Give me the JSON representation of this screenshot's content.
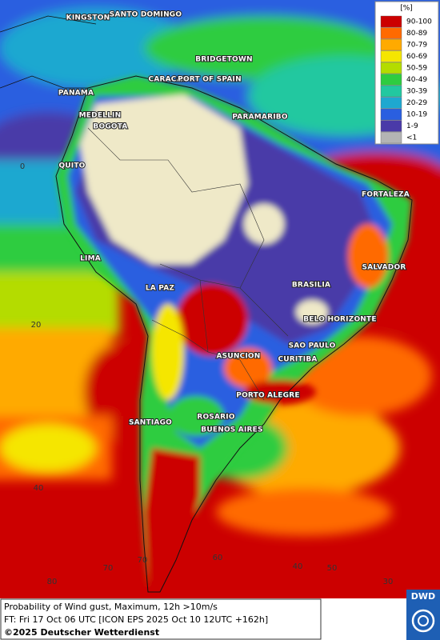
{
  "map": {
    "cities": [
      "KINGSTON",
      "SANTO DOMINGO",
      "BRIDGETOWN",
      "CARACAS",
      "PORT OF SPAIN",
      "PANAMA",
      "MEDELLIN",
      "BOGOTA",
      "PARAMARIBO",
      "QUITO",
      "FORTALEZA",
      "LIMA",
      "SALVADOR",
      "LA PAZ",
      "BRASILIA",
      "BELO HORIZONTE",
      "ASUNCION",
      "SAO PAULO",
      "CURITIBA",
      "PORTO ALEGRE",
      "ROSARIO",
      "BUENOS AIRES",
      "SANTIAGO"
    ],
    "latitude_labels": [
      0,
      20,
      40
    ],
    "longitude_labels": [
      80,
      70,
      70,
      60,
      50,
      40,
      30
    ],
    "legend": {
      "title": "[%]",
      "items": [
        {
          "label": "90-100",
          "color": "#cc0000"
        },
        {
          "label": "80-89",
          "color": "#ff6a00"
        },
        {
          "label": "70-79",
          "color": "#ffaa00"
        },
        {
          "label": "60-69",
          "color": "#f5e600"
        },
        {
          "label": "50-59",
          "color": "#b4dc00"
        },
        {
          "label": "40-49",
          "color": "#2ecc40"
        },
        {
          "label": "30-39",
          "color": "#22c8a0"
        },
        {
          "label": "20-29",
          "color": "#1ea8d0"
        },
        {
          "label": "10-19",
          "color": "#2a5fe0"
        },
        {
          "label": "1-9",
          "color": "#4a3aa8"
        },
        {
          "label": "<1",
          "color": "#b4b4b4"
        }
      ]
    },
    "footer": {
      "line1": "Probability of Wind gust, Maximum, 12h >10m/s",
      "line2": "FT: Fri 17 Oct 06 UTC [ICON EPS 2025 Oct 10 12UTC +162h]",
      "copyright": "©2025 Deutscher Wetterdienst",
      "logo": "DWD"
    }
  }
}
